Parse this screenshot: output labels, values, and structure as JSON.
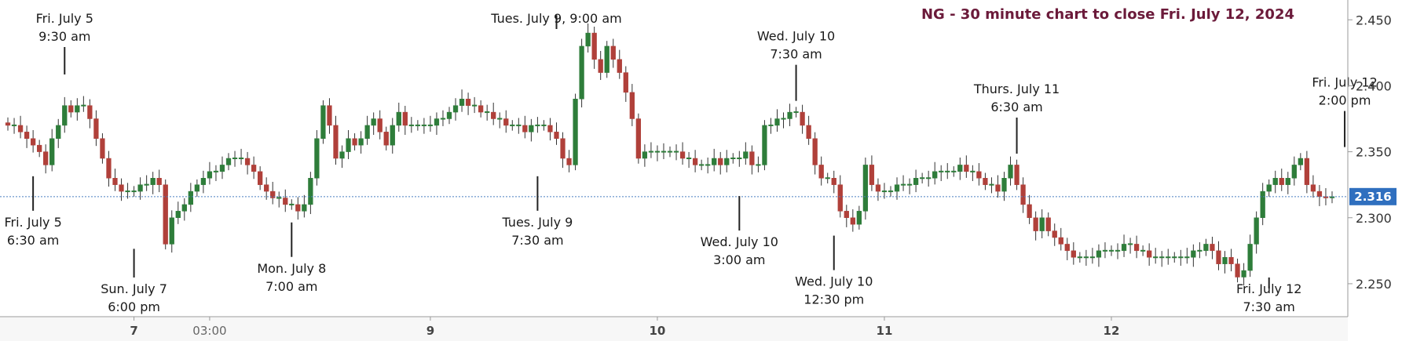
{
  "chart_data": {
    "type": "candlestick",
    "title": "NG - 30 minute chart to close Fri. July 12, 2024",
    "y_ticks": [
      "2.450",
      "2.400",
      "2.350",
      "2.300",
      "2.250"
    ],
    "y_tick_values": [
      2.45,
      2.4,
      2.35,
      2.3,
      2.25
    ],
    "ylim": [
      2.225,
      2.465
    ],
    "x_ticks": [
      {
        "label": "7",
        "bar": 20
      },
      {
        "label": "03:00",
        "bar": 32
      },
      {
        "label": "9",
        "bar": 67
      },
      {
        "label": "10",
        "bar": 103
      },
      {
        "label": "11",
        "bar": 139
      },
      {
        "label": "12",
        "bar": 175
      }
    ],
    "last_price": 2.316,
    "last_price_label": "2.316",
    "up_color": "#2e7d3a",
    "down_color": "#b0403a",
    "closes": [
      2.37,
      2.37,
      2.365,
      2.36,
      2.355,
      2.35,
      2.34,
      2.36,
      2.37,
      2.385,
      2.38,
      2.385,
      2.385,
      2.375,
      2.36,
      2.345,
      2.33,
      2.325,
      2.32,
      2.32,
      2.32,
      2.325,
      2.325,
      2.33,
      2.325,
      2.28,
      2.3,
      2.305,
      2.31,
      2.32,
      2.325,
      2.33,
      2.335,
      2.335,
      2.34,
      2.345,
      2.345,
      2.345,
      2.34,
      2.335,
      2.325,
      2.32,
      2.315,
      2.315,
      2.31,
      2.31,
      2.305,
      2.31,
      2.33,
      2.36,
      2.385,
      2.37,
      2.345,
      2.35,
      2.36,
      2.355,
      2.36,
      2.37,
      2.375,
      2.365,
      2.355,
      2.37,
      2.38,
      2.37,
      2.37,
      2.37,
      2.37,
      2.37,
      2.375,
      2.375,
      2.38,
      2.385,
      2.39,
      2.385,
      2.385,
      2.38,
      2.38,
      2.375,
      2.375,
      2.37,
      2.37,
      2.37,
      2.365,
      2.37,
      2.37,
      2.37,
      2.365,
      2.36,
      2.345,
      2.34,
      2.39,
      2.43,
      2.44,
      2.42,
      2.41,
      2.43,
      2.42,
      2.41,
      2.395,
      2.375,
      2.345,
      2.35,
      2.35,
      2.35,
      2.35,
      2.35,
      2.35,
      2.345,
      2.345,
      2.34,
      2.34,
      2.34,
      2.345,
      2.34,
      2.345,
      2.345,
      2.345,
      2.35,
      2.34,
      2.34,
      2.37,
      2.37,
      2.375,
      2.375,
      2.38,
      2.38,
      2.37,
      2.36,
      2.34,
      2.33,
      2.33,
      2.325,
      2.305,
      2.3,
      2.295,
      2.305,
      2.34,
      2.325,
      2.32,
      2.32,
      2.32,
      2.325,
      2.325,
      2.325,
      2.33,
      2.33,
      2.33,
      2.335,
      2.335,
      2.335,
      2.335,
      2.34,
      2.335,
      2.335,
      2.33,
      2.325,
      2.325,
      2.32,
      2.33,
      2.34,
      2.325,
      2.31,
      2.3,
      2.29,
      2.3,
      2.29,
      2.285,
      2.28,
      2.275,
      2.27,
      2.27,
      2.27,
      2.27,
      2.275,
      2.275,
      2.275,
      2.275,
      2.28,
      2.28,
      2.275,
      2.275,
      2.27,
      2.27,
      2.27,
      2.27,
      2.27,
      2.27,
      2.27,
      2.275,
      2.275,
      2.28,
      2.275,
      2.265,
      2.27,
      2.265,
      2.255,
      2.26,
      2.28,
      2.3,
      2.32,
      2.325,
      2.33,
      2.325,
      2.33,
      2.34,
      2.345,
      2.325,
      2.32,
      2.316,
      2.315,
      2.316
    ],
    "annotations": [
      {
        "lines": [
          "Fri. July 5",
          "9:30 am"
        ],
        "bar": 9,
        "position": "above",
        "price": 2.405
      },
      {
        "lines": [
          "Fri. July 5",
          "6:30 am"
        ],
        "bar": 4,
        "position": "below",
        "price": 2.335
      },
      {
        "lines": [
          "Sun. July 7",
          "6:00 pm"
        ],
        "bar": 20,
        "position": "below",
        "price": 2.28
      },
      {
        "lines": [
          "Mon. July 8",
          "7:00 am"
        ],
        "bar": 45,
        "position": "below",
        "price": 2.3
      },
      {
        "lines": [
          "Tues. July 9, 9:00 am"
        ],
        "bar": 87,
        "position": "above",
        "price": 2.45
      },
      {
        "lines": [
          "Tues. July 9",
          "7:30 am"
        ],
        "bar": 84,
        "position": "below",
        "price": 2.335
      },
      {
        "lines": [
          "Wed. July 10",
          "7:30 am"
        ],
        "bar": 125,
        "position": "above",
        "price": 2.385
      },
      {
        "lines": [
          "Wed. July 10",
          "3:00 am"
        ],
        "bar": 116,
        "position": "below",
        "price": 2.32
      },
      {
        "lines": [
          "Wed. July 10",
          "12:30 pm"
        ],
        "bar": 131,
        "position": "below",
        "price": 2.29
      },
      {
        "lines": [
          "Thurs. July 11",
          "6:30 am"
        ],
        "bar": 160,
        "position": "above",
        "price": 2.345
      },
      {
        "lines": [
          "Fri. July 12",
          "7:30 am"
        ],
        "bar": 200,
        "position": "below",
        "price": 2.25
      },
      {
        "lines": [
          "Fri. July 12",
          "2:00 pm"
        ],
        "bar": 212,
        "position": "above",
        "price": 2.35
      }
    ]
  }
}
